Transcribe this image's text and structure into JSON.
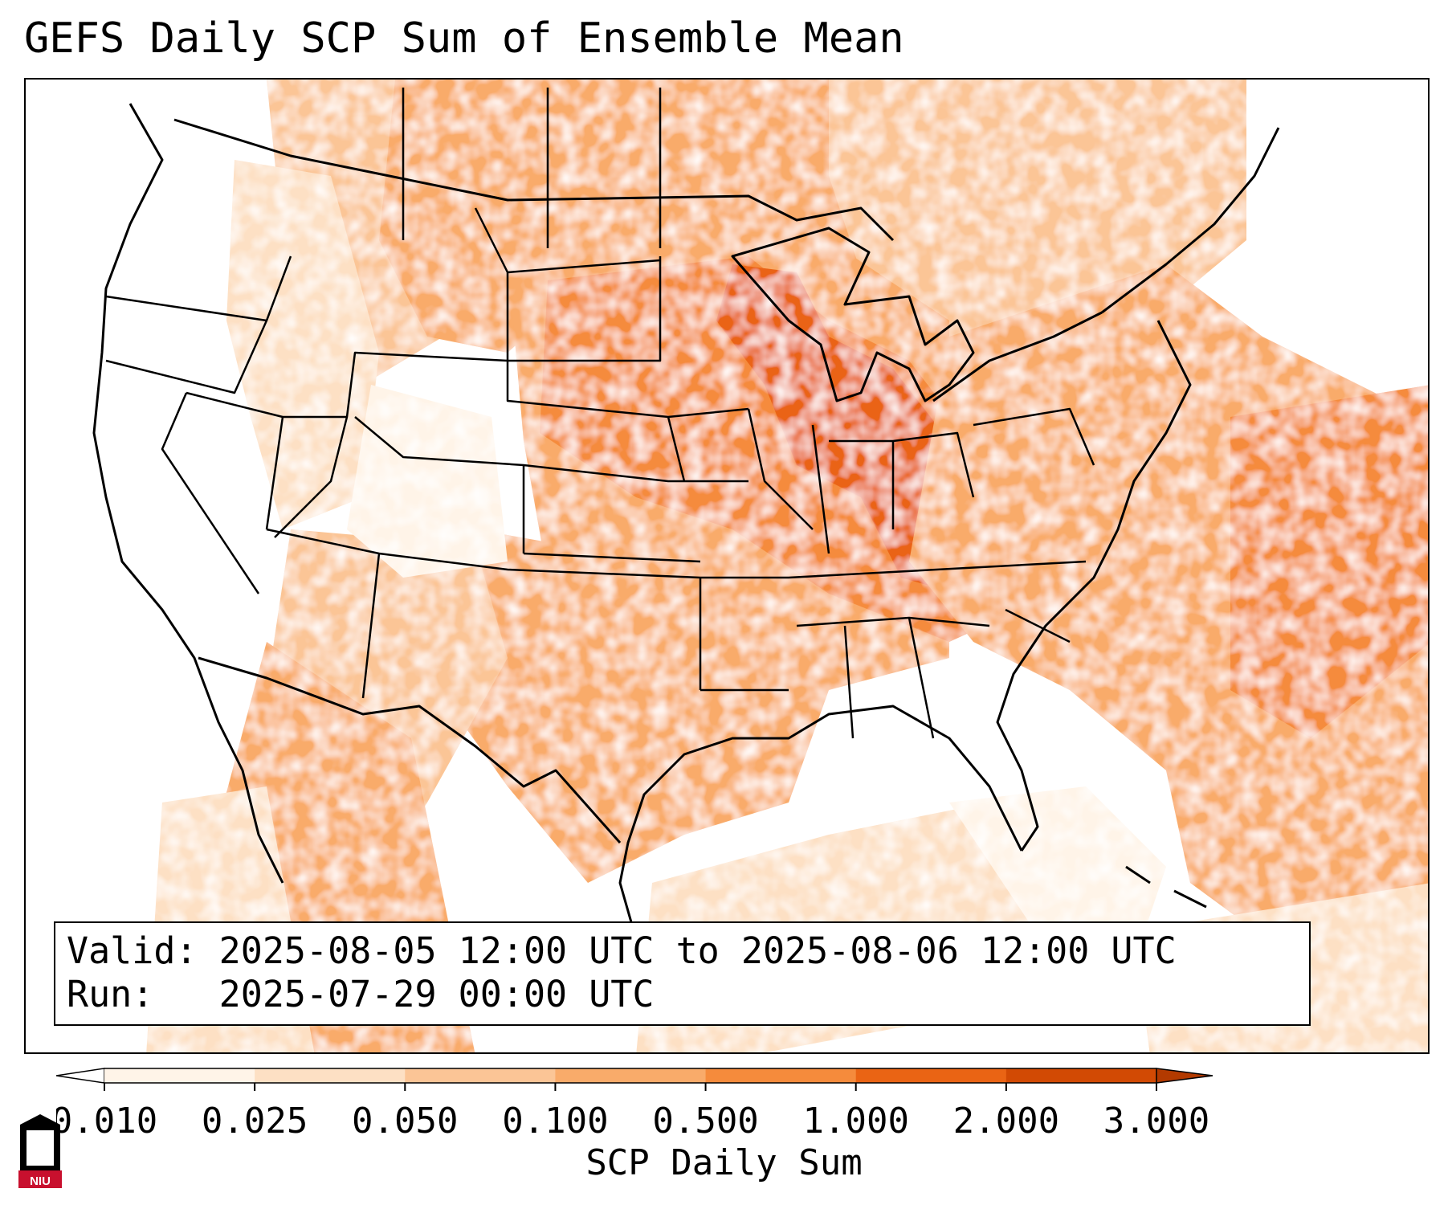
{
  "title": "GEFS Daily SCP Sum of Ensemble Mean",
  "info": {
    "valid": "Valid: 2025-08-05 12:00 UTC to 2025-08-06 12:00 UTC",
    "run": "Run:   2025-07-29 00:00 UTC"
  },
  "colorbar": {
    "label": "SCP Daily Sum",
    "ticks": [
      "0.010",
      "0.025",
      "0.050",
      "0.100",
      "0.500",
      "1.000",
      "2.000",
      "3.000"
    ],
    "colors": [
      "#fff4e8",
      "#fde0c4",
      "#fbc596",
      "#f9ab6a",
      "#f58b3c",
      "#ea6414",
      "#d24a04"
    ],
    "extend": "both"
  },
  "logo": {
    "text": "NIU",
    "colors": [
      "#c8102e",
      "#000000",
      "#ffffff"
    ]
  },
  "palette": {
    "state_lines": "#000000",
    "background": "#ffffff"
  }
}
